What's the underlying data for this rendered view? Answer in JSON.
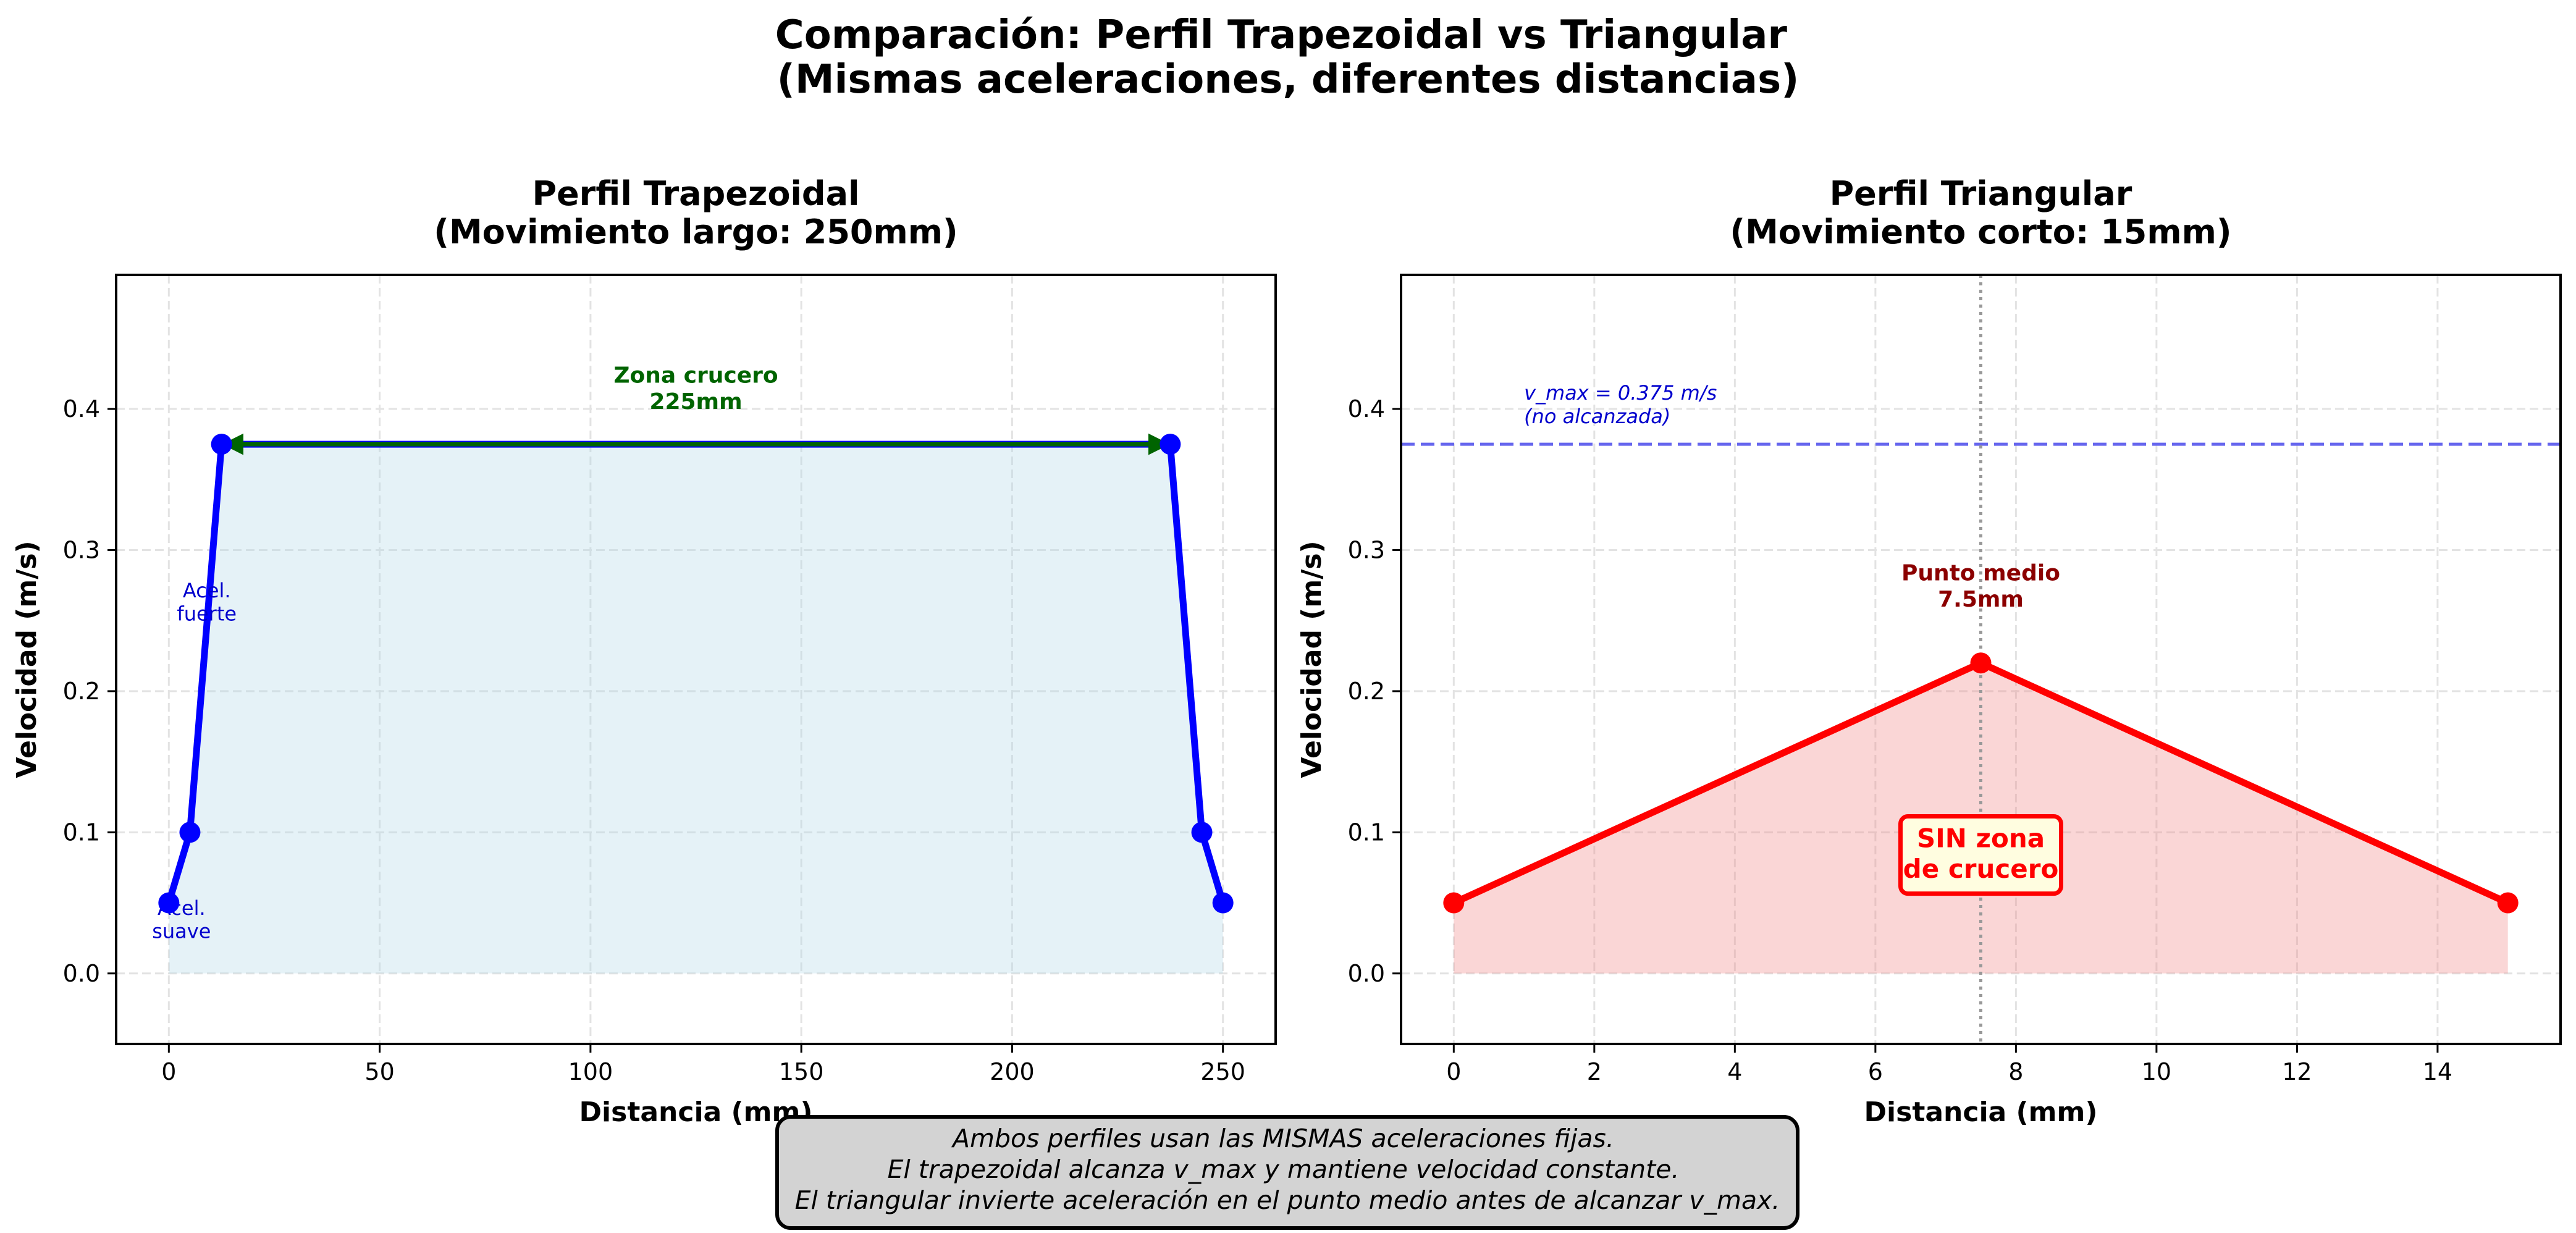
{
  "figure": {
    "suptitle": [
      "Comparación: Perfil Trapezoidal vs Triangular",
      "(Mismas aceleraciones, diferentes distancias)"
    ],
    "footnote": [
      "Ambos perfiles usan las MISMAS aceleraciones fijas.",
      "El trapezoidal alcanza v_max y mantiene velocidad constante.",
      "El triangular invierte aceleración en el punto medio antes de alcanzar v_max."
    ]
  },
  "chart_data": [
    {
      "type": "line",
      "title": [
        "Perfil Trapezoidal",
        "(Movimiento largo: 250mm)"
      ],
      "xlabel": "Distancia (mm)",
      "ylabel": "Velocidad (m/s)",
      "xlim": [
        -12.5,
        262.5
      ],
      "ylim": [
        -0.05,
        0.495
      ],
      "xticks": [
        0,
        50,
        100,
        150,
        200,
        250
      ],
      "xtick_labels": [
        "0",
        "50",
        "100",
        "150",
        "200",
        "250"
      ],
      "yticks": [
        0.0,
        0.1,
        0.2,
        0.3,
        0.4
      ],
      "ytick_labels": [
        "0.0",
        "0.1",
        "0.2",
        "0.3",
        "0.4"
      ],
      "grid": true,
      "color": "#0000ff",
      "fill_color": "#add8e6",
      "series": [
        {
          "x": [
            0,
            5,
            12.5,
            237.5,
            245,
            250
          ],
          "y": [
            0.05,
            0.1,
            0.375,
            0.375,
            0.1,
            0.05
          ]
        }
      ],
      "annotations": [
        {
          "type": "double-arrow",
          "x0": 12.5,
          "x1": 237.5,
          "y": 0.375,
          "color": "#006400"
        },
        {
          "type": "text",
          "lines": [
            "Zona crucero",
            "225mm"
          ],
          "x": 125,
          "y": 0.4,
          "color": "#006400",
          "bold": true
        },
        {
          "type": "text",
          "lines": [
            "Acel.",
            "fuerte"
          ],
          "x": 9,
          "y": 0.25,
          "color": "#0000cd"
        },
        {
          "type": "text",
          "lines": [
            "Acel.",
            "suave"
          ],
          "x": 3,
          "y": 0.025,
          "color": "#0000cd"
        }
      ]
    },
    {
      "type": "line",
      "title": [
        "Perfil Triangular",
        "(Movimiento corto: 15mm)"
      ],
      "xlabel": "Distancia (mm)",
      "ylabel": "Velocidad (m/s)",
      "xlim": [
        -0.75,
        15.75
      ],
      "ylim": [
        -0.05,
        0.495
      ],
      "xticks": [
        0,
        2,
        4,
        6,
        8,
        10,
        12,
        14
      ],
      "xtick_labels": [
        "0",
        "2",
        "4",
        "6",
        "8",
        "10",
        "12",
        "14"
      ],
      "yticks": [
        0.0,
        0.1,
        0.2,
        0.3,
        0.4
      ],
      "ytick_labels": [
        "0.0",
        "0.1",
        "0.2",
        "0.3",
        "0.4"
      ],
      "grid": true,
      "color": "#ff0000",
      "fill_color": "#f08080",
      "series": [
        {
          "x": [
            0,
            7.5,
            15
          ],
          "y": [
            0.05,
            0.22,
            0.05
          ]
        }
      ],
      "reference_lines": [
        {
          "orientation": "horizontal",
          "value": 0.375,
          "color": "#6666ee",
          "style": "dashed"
        },
        {
          "orientation": "vertical",
          "value": 7.5,
          "color": "#999999",
          "style": "dotted"
        }
      ],
      "annotations": [
        {
          "type": "text",
          "lines": [
            "v_max = 0.375 m/s",
            "(no alcanzada)"
          ],
          "x": 1,
          "y": 0.39,
          "color": "#0000cd",
          "italic": true,
          "align": "start"
        },
        {
          "type": "text",
          "lines": [
            "Punto medio",
            "7.5mm"
          ],
          "x": 7.5,
          "y": 0.26,
          "color": "#8b0000",
          "bold": true
        },
        {
          "type": "boxed-text",
          "lines": [
            "SIN zona",
            "de crucero"
          ],
          "x": 7.5,
          "y": 0.085,
          "color": "#ff0000",
          "bold": true,
          "box_fill": "#fffde0"
        }
      ]
    }
  ]
}
